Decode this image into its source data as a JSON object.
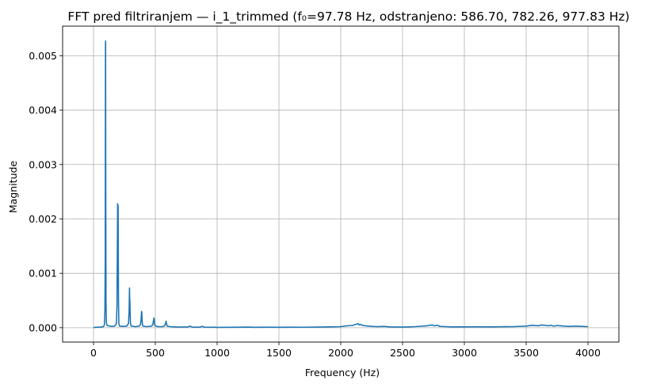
{
  "chart_data": {
    "type": "line",
    "title": "FFT pred filtriranjem — i_1_trimmed (f₀=97.78 Hz, odstranjeno: 586.70, 782.26, 977.83 Hz)",
    "xlabel": "Frequency (Hz)",
    "ylabel": "Magnitude",
    "xlim": [
      -250,
      4250
    ],
    "ylim": [
      -0.000264,
      0.005544
    ],
    "x_ticks": [
      0,
      500,
      1000,
      1500,
      2000,
      2500,
      3000,
      3500,
      4000
    ],
    "y_ticks": [
      0.0,
      0.001,
      0.002,
      0.003,
      0.004,
      0.005
    ],
    "x_tick_labels": [
      "0",
      "500",
      "1000",
      "1500",
      "2000",
      "2500",
      "3000",
      "3500",
      "4000"
    ],
    "y_tick_labels": [
      "0.000",
      "0.001",
      "0.002",
      "0.003",
      "0.004",
      "0.005"
    ],
    "grid": true,
    "series_color": "#1f77b4",
    "series": [
      {
        "x": [
          0,
          20,
          40,
          60,
          80,
          88,
          92,
          95,
          97,
          97.8,
          99,
          101,
          104,
          110,
          130,
          150,
          170,
          185,
          190,
          193,
          195,
          196,
          197,
          199,
          202,
          205,
          210,
          240,
          270,
          283,
          288,
          291,
          293,
          294,
          296,
          299,
          305,
          340,
          370,
          380,
          385,
          389,
          391,
          393,
          396,
          400,
          430,
          470,
          480,
          485,
          489,
          492,
          496,
          520,
          560,
          576,
          583,
          587,
          590,
          596,
          620,
          700,
          765,
          775,
          782,
          789,
          800,
          860,
          870,
          880,
          890,
          900,
          960,
          970,
          978,
          986,
          1000,
          1100,
          1200,
          1250,
          1300,
          1400,
          1500,
          1600,
          1700,
          1800,
          1900,
          2000,
          2050,
          2080,
          2100,
          2120,
          2140,
          2150,
          2160,
          2180,
          2200,
          2250,
          2300,
          2350,
          2400,
          2500,
          2600,
          2700,
          2720,
          2740,
          2760,
          2780,
          2800,
          2850,
          2900,
          3000,
          3100,
          3200,
          3300,
          3400,
          3500,
          3550,
          3600,
          3620,
          3650,
          3680,
          3700,
          3720,
          3750,
          3780,
          3800,
          3850,
          3900,
          3950,
          4000
        ],
        "y": [
          5e-06,
          8e-06,
          1e-05,
          1.2e-05,
          2e-05,
          5e-05,
          0.0003,
          0.0012,
          0.0052,
          0.00527,
          0.0028,
          0.0005,
          0.0001,
          4e-05,
          3e-05,
          2.5e-05,
          3e-05,
          7e-05,
          0.0004,
          0.0015,
          0.00228,
          0.0022,
          0.0016,
          0.00225,
          0.0005,
          8e-05,
          3e-05,
          2.5e-05,
          3e-05,
          8e-05,
          0.0003,
          0.00073,
          0.0005,
          0.00052,
          0.0003,
          8e-05,
          3e-05,
          2e-05,
          3e-05,
          6e-05,
          0.00015,
          0.0003,
          0.00028,
          0.00015,
          5e-05,
          3e-05,
          2e-05,
          3e-05,
          6e-05,
          0.00013,
          0.00018,
          0.00012,
          4e-05,
          2e-05,
          2e-05,
          4e-05,
          8e-05,
          0.00012,
          8e-05,
          3e-05,
          2e-05,
          1.2e-05,
          1.5e-05,
          2.5e-05,
          3e-05,
          2e-05,
          1e-05,
          1e-05,
          1.8e-05,
          2.5e-05,
          1.5e-05,
          1e-05,
          8e-06,
          1e-05,
          1.2e-05,
          8e-06,
          6e-06,
          8e-06,
          1e-05,
          1.2e-05,
          8e-06,
          1e-05,
          8e-06,
          1e-05,
          9e-06,
          1.2e-05,
          1.5e-05,
          2e-05,
          3.5e-05,
          4e-05,
          4.5e-05,
          6e-05,
          7.5e-05,
          5e-05,
          6e-05,
          4e-05,
          3.5e-05,
          2.5e-05,
          2e-05,
          2.5e-05,
          1.5e-05,
          1.2e-05,
          2e-05,
          3.5e-05,
          4.5e-05,
          5e-05,
          3.5e-05,
          4.5e-05,
          2.5e-05,
          2e-05,
          1.5e-05,
          1.5e-05,
          1.8e-05,
          1.5e-05,
          1.8e-05,
          2e-05,
          3e-05,
          4.5e-05,
          3.5e-05,
          5e-05,
          4.5e-05,
          3.5e-05,
          4.5e-05,
          3e-05,
          4e-05,
          3.5e-05,
          3e-05,
          2.5e-05,
          3e-05,
          2.5e-05,
          2e-05
        ]
      }
    ]
  }
}
